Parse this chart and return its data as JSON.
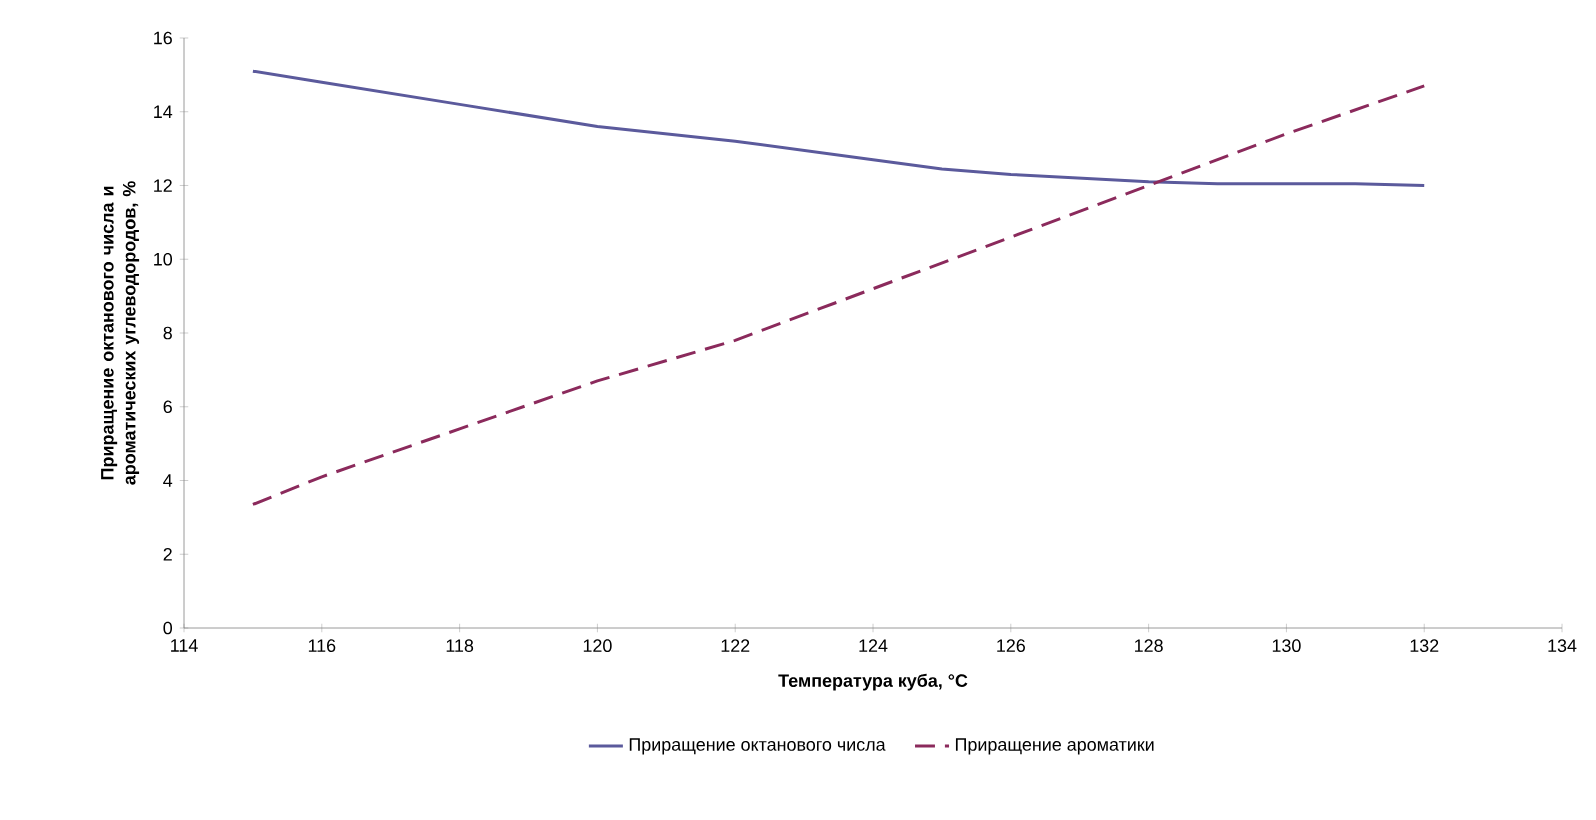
{
  "chart_data": {
    "type": "line",
    "xlabel": "Температура куба, °C",
    "ylabel": "Приращение октанового числа и ароматических углеводородов, %",
    "xlim": [
      114,
      134
    ],
    "xticks": [
      114,
      116,
      118,
      120,
      122,
      124,
      126,
      128,
      130,
      132,
      134
    ],
    "ylim": [
      0,
      16
    ],
    "yticks": [
      0,
      2,
      4,
      6,
      8,
      10,
      12,
      14,
      16
    ],
    "grid": false,
    "legend": "bottom",
    "marker": "none",
    "series": [
      {
        "name": "Приращение октанового числа",
        "color": "#5b5a9c",
        "line_style": "solid",
        "x": [
          115,
          116,
          118,
          120,
          122,
          124,
          125,
          126,
          128,
          129,
          130,
          131,
          132
        ],
        "values": [
          15.1,
          14.8,
          14.2,
          13.6,
          13.2,
          12.7,
          12.45,
          12.3,
          12.1,
          12.05,
          12.05,
          12.05,
          12.0
        ]
      },
      {
        "name": "Приращение ароматики",
        "color": "#8b2a5c",
        "line_style": "dashed",
        "x": [
          115,
          116,
          118,
          120,
          122,
          124,
          126,
          128,
          130,
          132
        ],
        "values": [
          3.35,
          4.1,
          5.4,
          6.7,
          7.8,
          9.2,
          10.6,
          12.0,
          13.4,
          14.7
        ]
      }
    ]
  }
}
